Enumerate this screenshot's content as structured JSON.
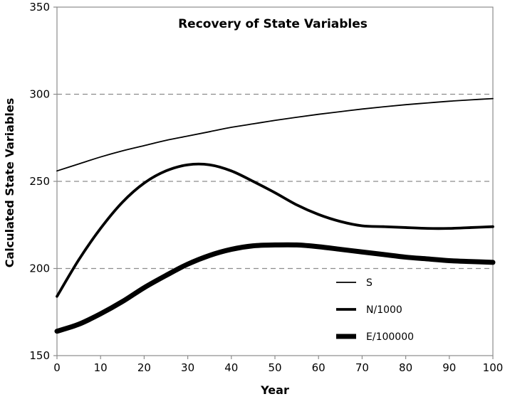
{
  "chart_data": {
    "type": "line",
    "title": "Recovery of State Variables",
    "xlabel": "Year",
    "ylabel": "Calculated State Variables",
    "xlim": [
      0,
      100
    ],
    "ylim": [
      150,
      350
    ],
    "x_ticks": [
      "0",
      "10",
      "20",
      "30",
      "40",
      "50",
      "60",
      "70",
      "80",
      "90",
      "100"
    ],
    "y_ticks": [
      "150",
      "200",
      "250",
      "300",
      "350"
    ],
    "gridlines_y": [
      200,
      250,
      300
    ],
    "grid": "horizontal dashed",
    "legend_position": "lower-right",
    "x": [
      0,
      5,
      10,
      15,
      20,
      25,
      30,
      35,
      40,
      45,
      50,
      55,
      60,
      65,
      70,
      75,
      80,
      85,
      90,
      95,
      100
    ],
    "series": [
      {
        "name": "S",
        "color": "#000000",
        "line_weight": "thin",
        "values": [
          256,
          260,
          264,
          267.5,
          270.5,
          273.5,
          276,
          278.5,
          281,
          283,
          285,
          286.8,
          288.5,
          290,
          291.5,
          292.8,
          294,
          295,
          296,
          296.8,
          297.5
        ]
      },
      {
        "name": "N/1000",
        "color": "#000000",
        "line_weight": "medium",
        "values": [
          184,
          205,
          223,
          238,
          249,
          256,
          259.5,
          259.5,
          256,
          250,
          243.5,
          236.5,
          231,
          227,
          224.5,
          224,
          223.5,
          223,
          223,
          223.5,
          224
        ]
      },
      {
        "name": "E/100000",
        "color": "#000000",
        "line_weight": "thick",
        "values": [
          164,
          168,
          174,
          181,
          189,
          196,
          202.5,
          207.5,
          211,
          213,
          213.5,
          213.5,
          212.5,
          211,
          209.5,
          208,
          206.5,
          205.5,
          204.5,
          204,
          203.5
        ]
      }
    ]
  }
}
